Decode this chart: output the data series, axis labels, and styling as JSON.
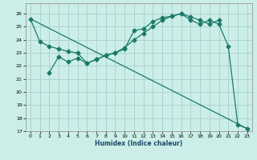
{
  "xlabel": "Humidex (Indice chaleur)",
  "bg_color": "#cceee8",
  "grid_color": "#aad4ce",
  "line_color": "#1a7a6a",
  "xlim": [
    -0.5,
    23.5
  ],
  "ylim": [
    17,
    26.8
  ],
  "xticks": [
    0,
    1,
    2,
    3,
    4,
    5,
    6,
    7,
    8,
    9,
    10,
    11,
    12,
    13,
    14,
    15,
    16,
    17,
    18,
    19,
    20,
    21,
    22,
    23
  ],
  "yticks": [
    17,
    18,
    19,
    20,
    21,
    22,
    23,
    24,
    25,
    26
  ],
  "line1_x": [
    0,
    1,
    2,
    3,
    4,
    5,
    6,
    7,
    8,
    9,
    10,
    11,
    12,
    13,
    14,
    15,
    16,
    17,
    18,
    19,
    20,
    21,
    22,
    23
  ],
  "line1_y": [
    25.6,
    23.85,
    23.5,
    23.3,
    23.1,
    23.0,
    22.2,
    22.5,
    22.8,
    23.0,
    23.3,
    24.7,
    24.85,
    25.4,
    25.7,
    25.8,
    26.0,
    25.5,
    25.2,
    25.5,
    25.2,
    23.5,
    17.5,
    17.2
  ],
  "line2_x": [
    2,
    3,
    4,
    5,
    6,
    7,
    8,
    9,
    10,
    11,
    12,
    13,
    14,
    15,
    16,
    17,
    18,
    19,
    20
  ],
  "line2_y": [
    21.5,
    22.7,
    22.3,
    22.6,
    22.2,
    22.5,
    22.8,
    23.0,
    23.4,
    24.0,
    24.5,
    25.0,
    25.5,
    25.8,
    26.0,
    25.75,
    25.5,
    25.2,
    25.5
  ],
  "line3_x": [
    0,
    23
  ],
  "line3_y": [
    25.6,
    17.2
  ]
}
